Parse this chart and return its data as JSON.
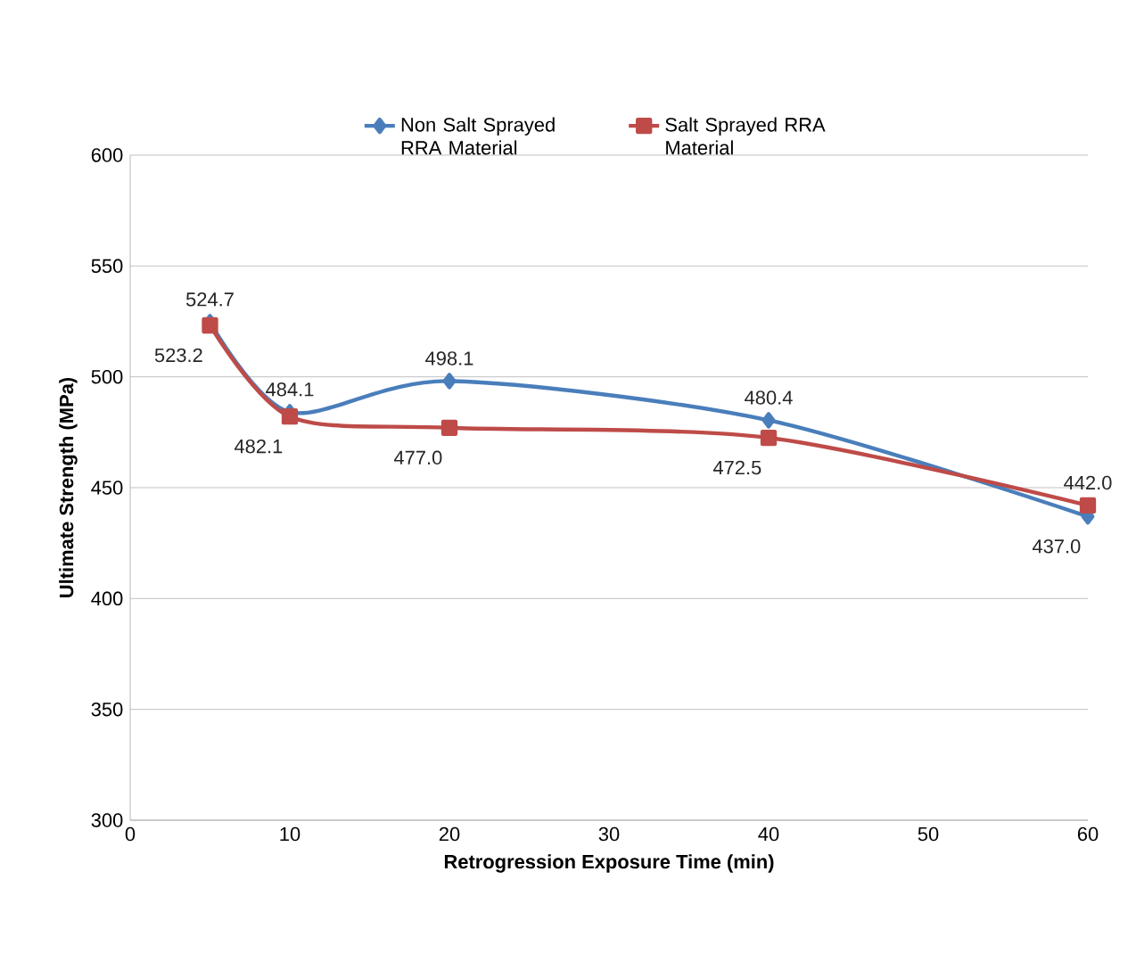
{
  "chart_data": {
    "type": "line",
    "xlabel": "Retrogression Exposure Time (min)",
    "ylabel": "Ultimate Strength (MPa)",
    "x": [
      5,
      10,
      20,
      40,
      60
    ],
    "series": [
      {
        "name": "Non Salt Sprayed RRA Material",
        "color": "#4a7ebb",
        "marker": "diamond",
        "values": [
          524.7,
          484.1,
          498.1,
          480.4,
          437.0
        ],
        "value_labels": [
          "524.7",
          "484.1",
          "498.1",
          "480.4",
          "437.0"
        ]
      },
      {
        "name": "Salt Sprayed RRA Material",
        "color": "#be4b48",
        "marker": "square",
        "values": [
          523.2,
          482.1,
          477.0,
          472.5,
          442.0
        ],
        "value_labels": [
          "523.2",
          "482.1",
          "477.0",
          "472.5",
          "442.0"
        ]
      }
    ],
    "xlim": [
      0,
      60
    ],
    "xticks": [
      0,
      10,
      20,
      30,
      40,
      50,
      60
    ],
    "ylim": [
      300,
      600
    ],
    "yticks": [
      300,
      350,
      400,
      450,
      500,
      550,
      600
    ],
    "grid": "y",
    "legend": "top",
    "line_style": "solid"
  }
}
